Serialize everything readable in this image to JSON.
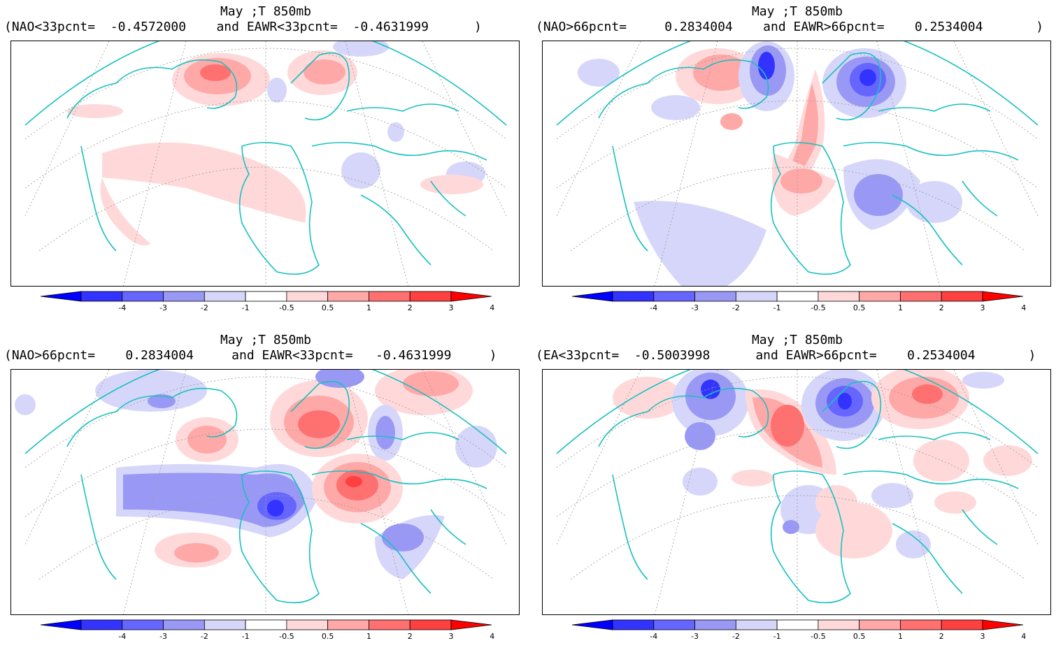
{
  "panels": [
    {
      "id": "tl",
      "title": "May ;T 850mb",
      "left_label": "(NAO<33pcnt=",
      "left_value": "-0.4572000",
      "right_label": "and EAWR<33pcnt=",
      "right_value": "-0.4631999",
      "close": ")"
    },
    {
      "id": "tr",
      "title": "May ;T 850mb",
      "left_label": "(NAO>66pcnt=",
      "left_value": "0.2834004",
      "right_label": "and EAWR>66pcnt=",
      "right_value": "0.2534004",
      "close": ")"
    },
    {
      "id": "bl",
      "title": "May ;T 850mb",
      "left_label": "(NAO>66pcnt=",
      "left_value": "0.2834004",
      "right_label": "and EAWR<33pcnt=",
      "right_value": "-0.4631999",
      "close": ")"
    },
    {
      "id": "br",
      "title": "May ;T 850mb",
      "left_label": "(EA<33pcnt=",
      "left_value": "-0.5003998",
      "right_label": "and EAWR>66pcnt=",
      "right_value": "0.2534004",
      "close": ")"
    }
  ],
  "colorbar": {
    "ticks": [
      "-4",
      "-3",
      "-2",
      "-1",
      "-0.5",
      "0.5",
      "1",
      "2",
      "3",
      "4"
    ],
    "colors": [
      "#0000ff",
      "#3333ff",
      "#6666ff",
      "#9999f5",
      "#d6d6fa",
      "#ffffff",
      "#ffd9d9",
      "#ffa8a8",
      "#ff7070",
      "#ff4040",
      "#ff0000"
    ]
  },
  "map_style": {
    "coastline_color": "#19c0c0",
    "grid_color": "#888888",
    "frame_color": "#000000"
  }
}
